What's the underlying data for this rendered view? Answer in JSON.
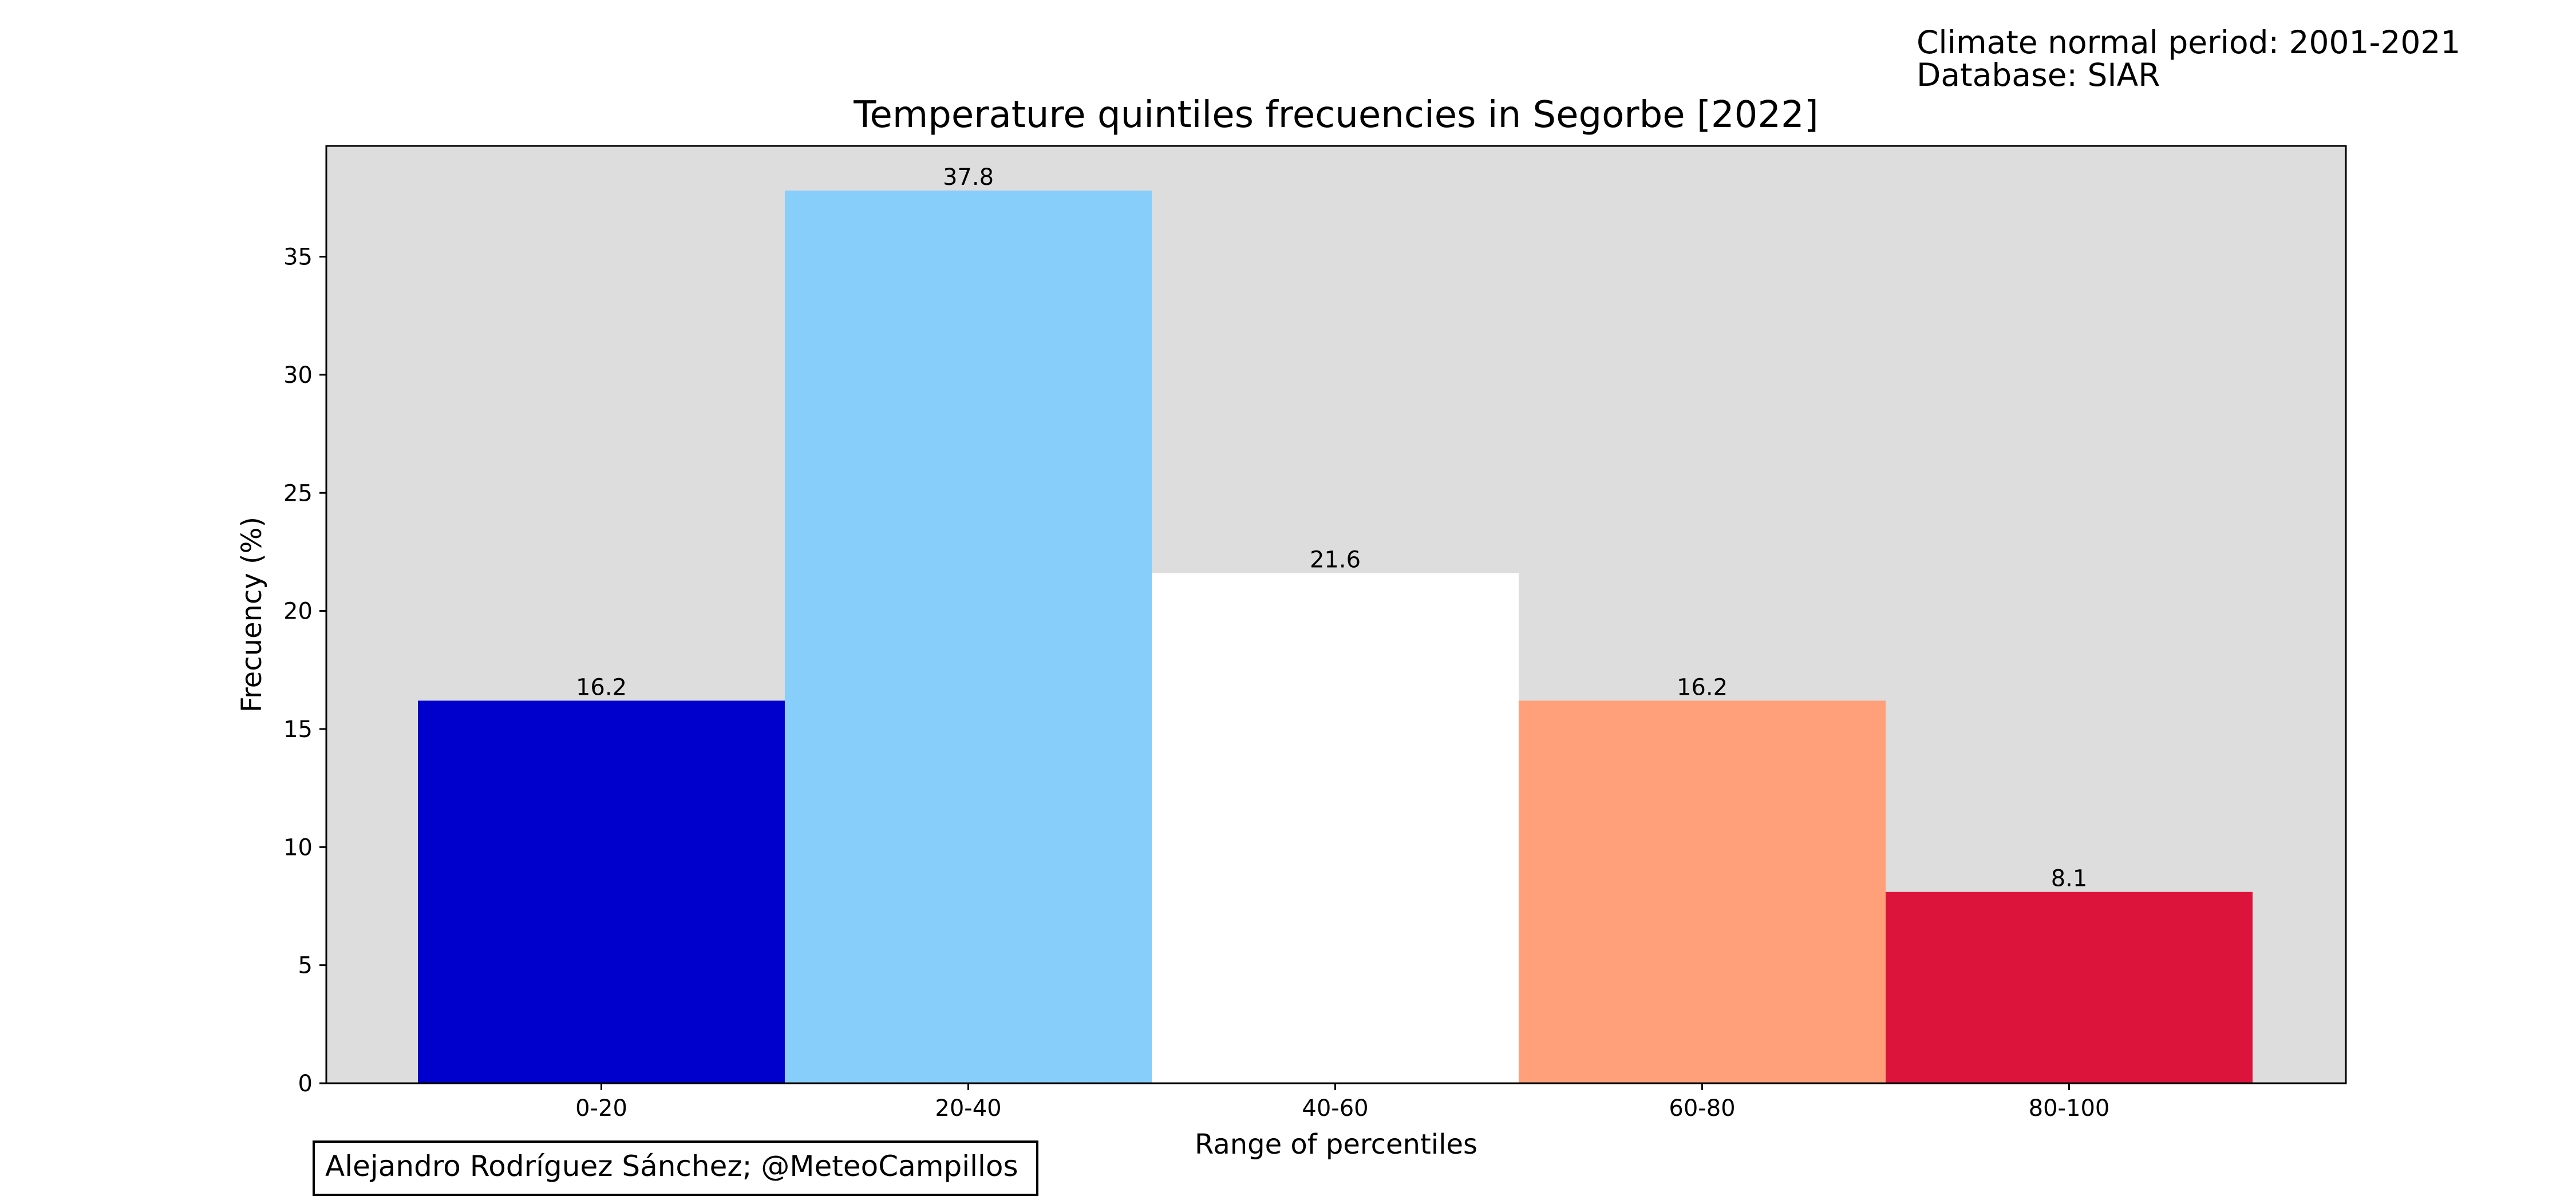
{
  "meta": {
    "climate_normal": "Climate normal period: 2001-2021",
    "database": "Database: SIAR",
    "credit": "Alejandro Rodríguez Sánchez; @MeteoCampillos"
  },
  "chart_data": {
    "type": "bar",
    "title": "Temperature quintiles frecuencies in Segorbe [2022]",
    "xlabel": "Range of percentiles",
    "ylabel": "Frecuency (%)",
    "categories": [
      "0-20",
      "20-40",
      "40-60",
      "60-80",
      "80-100"
    ],
    "values": [
      16.2,
      37.8,
      21.6,
      16.2,
      8.1
    ],
    "value_labels": [
      "16.2",
      "37.8",
      "21.6",
      "16.2",
      "8.1"
    ],
    "colors": [
      "#0000CD",
      "#87CEFA",
      "#FFFFFF",
      "#FFA07A",
      "#DC143C"
    ],
    "ylim": [
      0,
      39.69
    ],
    "yticks": [
      0,
      5,
      10,
      15,
      20,
      25,
      30,
      35
    ],
    "plot_background": "#DDDDDD",
    "grid": false,
    "legend": "none"
  }
}
